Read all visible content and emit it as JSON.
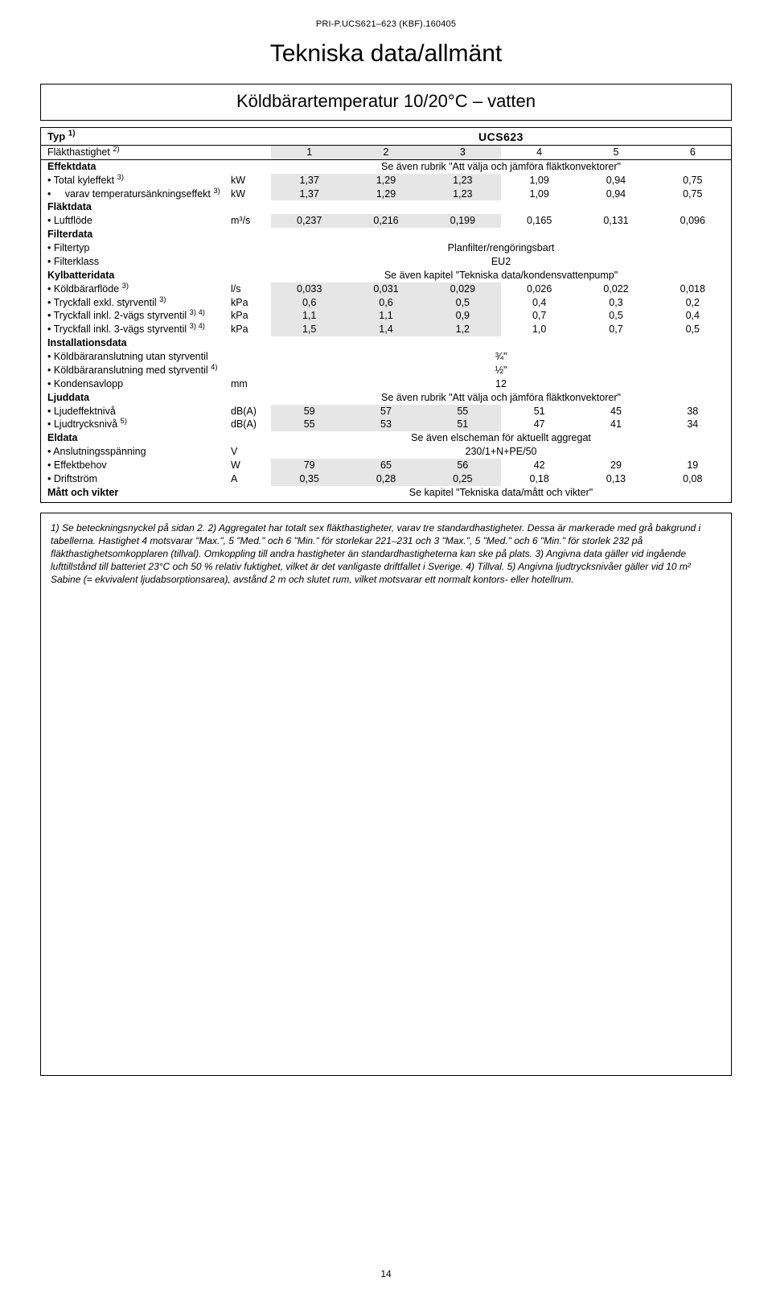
{
  "doc_id": "PRI-P.UCS621–623 (KBF).160405",
  "title": "Tekniska data/allmänt",
  "subtitle": "Köldbärartemperatur 10/20°C – vatten",
  "typ_label": "Typ ",
  "typ_sup": "1)",
  "typ_value": "UCS623",
  "flakt_label": "Fläkthastighet ",
  "flakt_sup": "2)",
  "speeds": [
    "1",
    "2",
    "3",
    "4",
    "5",
    "6"
  ],
  "shade_idx": [
    0,
    1,
    2
  ],
  "sections": {
    "effektdata": {
      "head": "Effektdata",
      "note": "Se även rubrik \"Att välja och jämföra fläktkonvektorer\""
    },
    "flaktdata": {
      "head": "Fläktdata"
    },
    "filterdata": {
      "head": "Filterdata"
    },
    "kylbatteridata": {
      "head": "Kylbatteridata",
      "note": "Se även kapitel \"Tekniska data/kondensvattenpump\""
    },
    "installationsdata": {
      "head": "Installationsdata"
    },
    "ljuddata": {
      "head": "Ljuddata",
      "note": "Se även rubrik \"Att välja och jämföra fläktkonvektorer\""
    },
    "eldata": {
      "head": "Eldata",
      "note": "Se även elscheman för aktuellt aggregat"
    },
    "matt": {
      "head": "Mått och vikter",
      "note": "Se kapitel \"Tekniska data/mått och vikter\""
    }
  },
  "rows": [
    {
      "label": "Total kyleffekt ",
      "sup": "3)",
      "unit": "kW",
      "vals": [
        "1,37",
        "1,29",
        "1,23",
        "1,09",
        "0,94",
        "0,75"
      ]
    },
    {
      "label": "varav temperatursänkningseffekt ",
      "sup": "3)",
      "unit": "kW",
      "vals": [
        "1,37",
        "1,29",
        "1,23",
        "1,09",
        "0,94",
        "0,75"
      ]
    },
    {
      "label": "Luftflöde",
      "unit_html": "m³/s",
      "vals": [
        "0,237",
        "0,216",
        "0,199",
        "0,165",
        "0,131",
        "0,096"
      ]
    },
    {
      "label": "Filtertyp",
      "span": "Planfilter/rengöringsbart"
    },
    {
      "label": "Filterklass",
      "span": "EU2"
    },
    {
      "label": "Köldbärarflöde ",
      "sup": "3)",
      "unit": "l/s",
      "vals": [
        "0,033",
        "0,031",
        "0,029",
        "0,026",
        "0,022",
        "0,018"
      ]
    },
    {
      "label": "Tryckfall exkl. styrventil ",
      "sup": "3)",
      "unit": "kPa",
      "vals": [
        "0,6",
        "0,6",
        "0,5",
        "0,4",
        "0,3",
        "0,2"
      ]
    },
    {
      "label": "Tryckfall inkl. 2-vägs styrventil ",
      "sup": "3) 4)",
      "unit": "kPa",
      "vals": [
        "1,1",
        "1,1",
        "0,9",
        "0,7",
        "0,5",
        "0,4"
      ]
    },
    {
      "label": "Tryckfall inkl. 3-vägs styrventil ",
      "sup": "3) 4)",
      "unit": "kPa",
      "vals": [
        "1,5",
        "1,4",
        "1,2",
        "1,0",
        "0,7",
        "0,5"
      ]
    },
    {
      "label": "Köldbäraranslutning utan styrventil",
      "span": "¾\""
    },
    {
      "label": "Köldbäraranslutning med styrventil ",
      "sup": "4)",
      "span": "½\""
    },
    {
      "label": "Kondensavlopp",
      "unit": "mm",
      "span": "12"
    },
    {
      "label": "Ljudeffektnivå",
      "unit": "dB(A)",
      "vals": [
        "59",
        "57",
        "55",
        "51",
        "45",
        "38"
      ]
    },
    {
      "label": "Ljudtrycksnivå ",
      "sup": "5)",
      "unit": "dB(A)",
      "vals": [
        "55",
        "53",
        "51",
        "47",
        "41",
        "34"
      ]
    },
    {
      "label": "Anslutningsspänning",
      "unit": "V",
      "span": "230/1+N+PE/50"
    },
    {
      "label": "Effektbehov",
      "unit": "W",
      "vals": [
        "79",
        "65",
        "56",
        "42",
        "29",
        "19"
      ]
    },
    {
      "label": "Driftström",
      "unit": "A",
      "vals": [
        "0,35",
        "0,28",
        "0,25",
        "0,18",
        "0,13",
        "0,08"
      ]
    }
  ],
  "footnotes": "1) Se beteckningsnyckel på sidan 2. 2) Aggregatet har totalt sex fläkthastigheter, varav tre standardhastigheter. Dessa är markerade med grå bakgrund i tabellerna. Hastighet 4 motsvarar \"Max.\", 5 \"Med.\" och 6 \"Min.\" för storlekar 221–231 och 3 \"Max.\", 5 \"Med.\" och 6 \"Min.\" för storlek 232 på fläkthastighetsomkopplaren (tillval). Omkoppling till andra hastigheter än standardhastigheterna kan ske på plats. 3) Angivna data gäller vid ingående lufttillstånd till batteriet 23°C och 50 % relativ fuktighet, vilket är det vanligaste driftfallet i Sverige. 4) Tillval. 5) Angivna ljudtrycksnivåer gäller vid 10 m² Sabine (= ekvivalent ljudabsorptionsarea), avstånd 2 m och slutet rum, vilket motsvarar ett normalt kontors- eller hotellrum.",
  "page_number": "14"
}
